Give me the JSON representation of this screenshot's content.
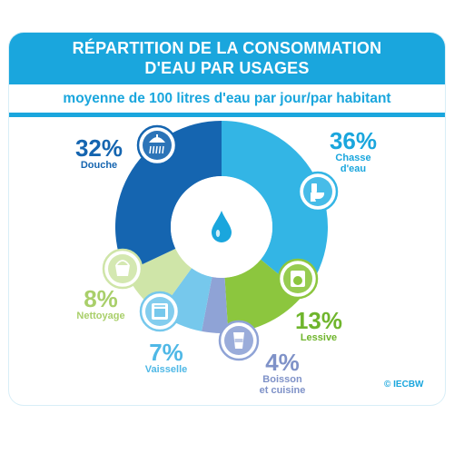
{
  "chart_data": {
    "type": "pie",
    "title": "RÉPARTITION DE LA CONSOMMATION D'EAU PAR USAGES",
    "title_lines": [
      "RÉPARTITION DE LA CONSOMMATION",
      "D'EAU PAR USAGES"
    ],
    "subtitle": "moyenne de 100 litres d'eau par jour/par habitant",
    "slices": [
      {
        "label": "Chasse d'eau",
        "label_lines": [
          "Chasse",
          "d'eau"
        ],
        "value": 36,
        "display": "36%",
        "color": "#33b5e5",
        "label_color": "#1aa6dd",
        "icon": "toilet-icon"
      },
      {
        "label": "Lessive",
        "label_lines": [
          "Lessive"
        ],
        "value": 13,
        "display": "13%",
        "color": "#8cc63e",
        "label_color": "#6fb52c",
        "icon": "washing-machine-icon"
      },
      {
        "label": "Boisson et cuisine",
        "label_lines": [
          "Boisson",
          "et cuisine"
        ],
        "value": 4,
        "display": "4%",
        "color": "#8fa3d6",
        "label_color": "#7f92c8",
        "icon": "glass-icon"
      },
      {
        "label": "Vaisselle",
        "label_lines": [
          "Vaisselle"
        ],
        "value": 7,
        "display": "7%",
        "color": "#76c8ec",
        "label_color": "#4fb8e6",
        "icon": "dishwasher-icon"
      },
      {
        "label": "Nettoyage",
        "label_lines": [
          "Nettoyage"
        ],
        "value": 8,
        "display": "8%",
        "color": "#cfe5a8",
        "label_color": "#a9cf6a",
        "icon": "bucket-icon"
      },
      {
        "label": "Douche",
        "label_lines": [
          "Douche"
        ],
        "value": 32,
        "display": "32%",
        "color": "#1565b0",
        "label_color": "#1565b0",
        "icon": "shower-icon"
      }
    ],
    "center_icon": "water-drop-icon",
    "legend": "none"
  },
  "credit": "© IECBW"
}
